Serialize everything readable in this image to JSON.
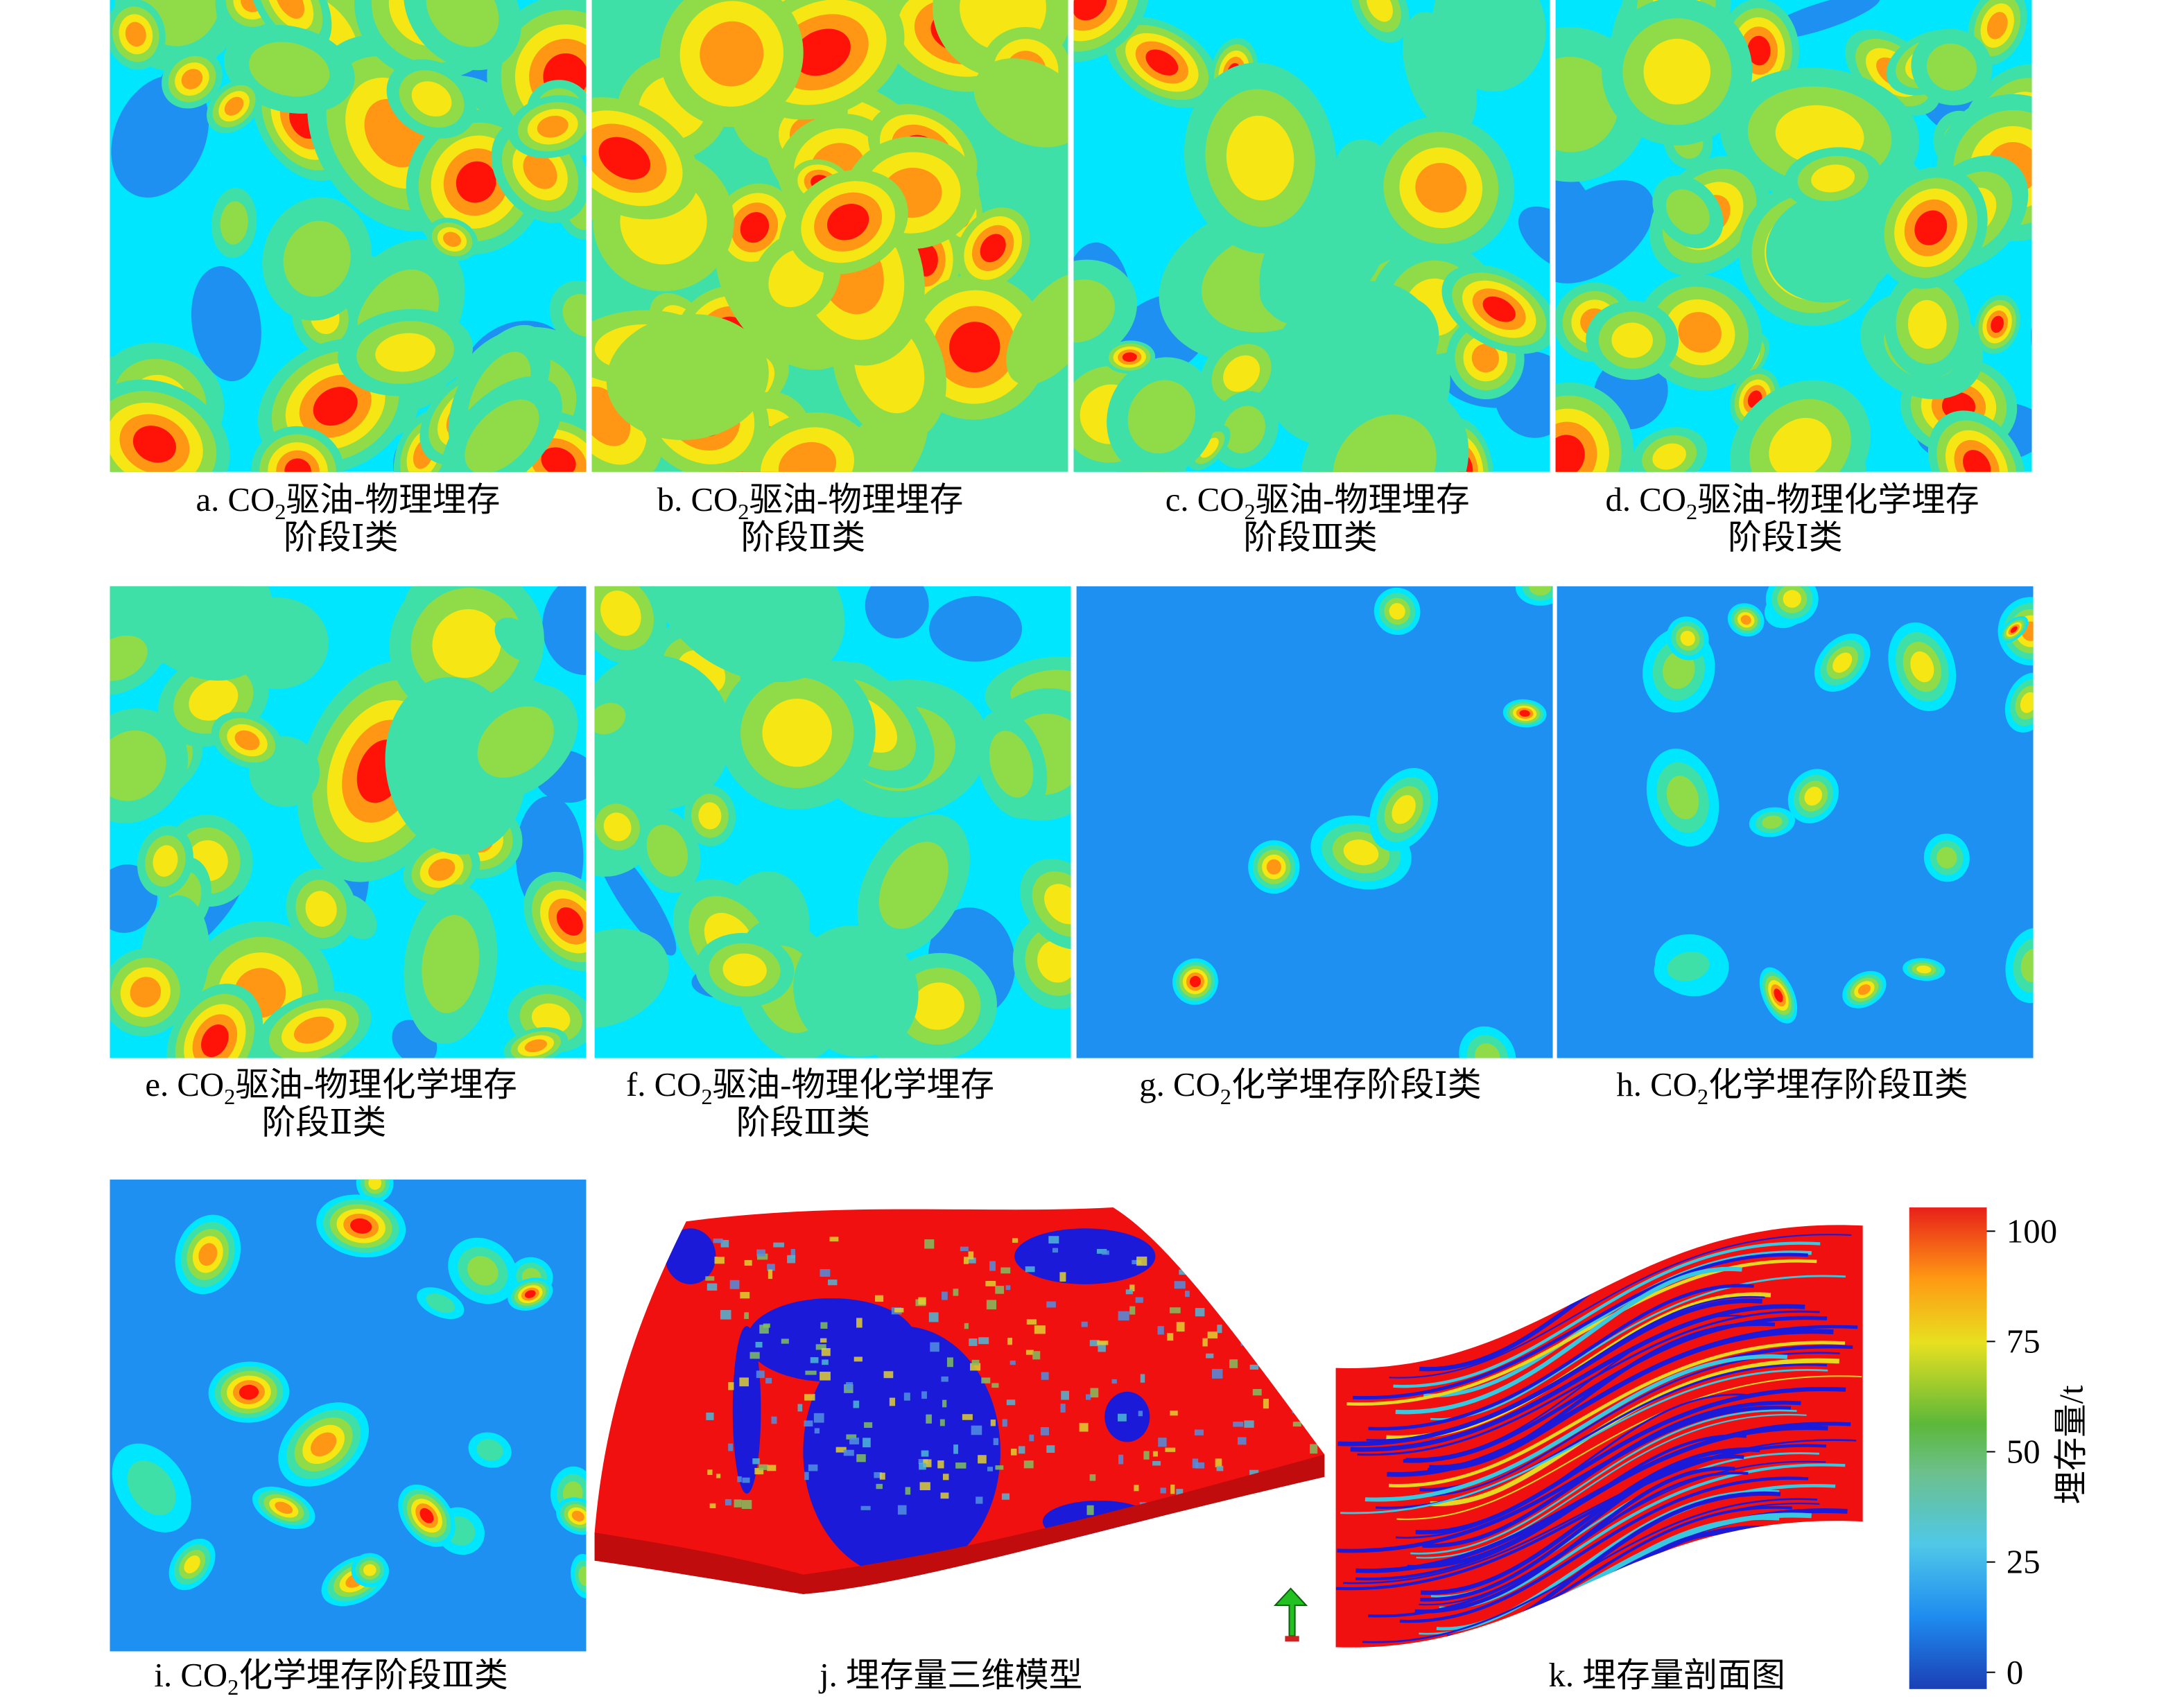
{
  "panels": [
    {
      "prefix": "a. CO",
      "sub": "2",
      "rest": "驱油-物理埋存",
      "line2": "阶段Ⅰ类"
    },
    {
      "prefix": "b. CO",
      "sub": "2",
      "rest": "驱油-物理埋存",
      "line2": "阶段Ⅱ类"
    },
    {
      "prefix": "c. CO",
      "sub": "2",
      "rest": "驱油-物理埋存",
      "line2": "阶段Ⅲ类"
    },
    {
      "prefix": "d. CO",
      "sub": "2",
      "rest": "驱油-物理化学埋存",
      "line2": "阶段Ⅰ类"
    },
    {
      "prefix": "e. CO",
      "sub": "2",
      "rest": "驱油-物理化学埋存",
      "line2": "阶段Ⅱ类"
    },
    {
      "prefix": "f. CO",
      "sub": "2",
      "rest": "驱油-物理化学埋存",
      "line2": "阶段Ⅲ类"
    },
    {
      "prefix": "g. CO",
      "sub": "2",
      "rest": "化学埋存阶段Ⅰ类"
    },
    {
      "prefix": "h. CO",
      "sub": "2",
      "rest": "化学埋存阶段Ⅱ类"
    },
    {
      "prefix": "i. CO",
      "sub": "2",
      "rest": "化学埋存阶段Ⅲ类"
    },
    {
      "prefix": "j. 埋存量三维模型"
    },
    {
      "prefix": "k. 埋存量剖面图"
    }
  ],
  "colorbar": {
    "title": "埋存量/t",
    "range": [
      0,
      100
    ],
    "ticks": [
      0,
      25,
      50,
      75,
      100
    ]
  }
}
